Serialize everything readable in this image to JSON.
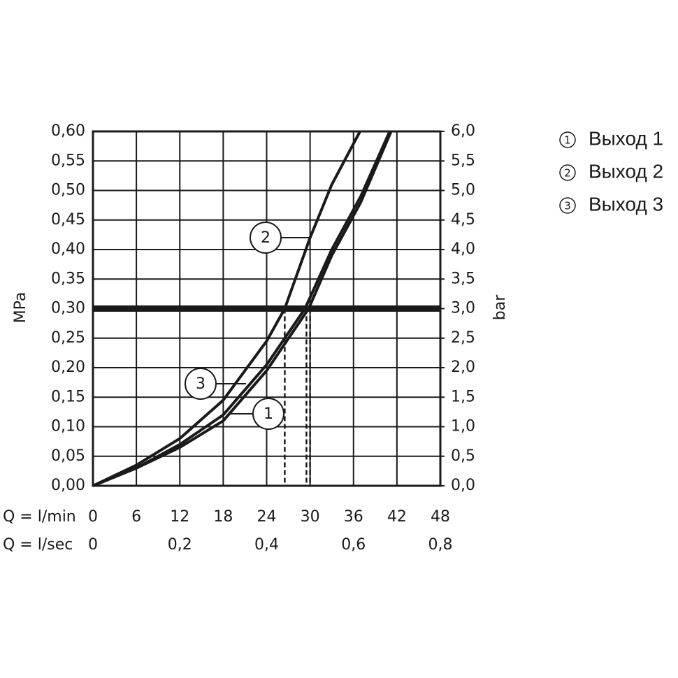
{
  "chart_data": {
    "type": "line",
    "y_label": "MPa",
    "y2_label": "bar",
    "x_label": "Q = l/min",
    "x2_label": "Q = l/sec",
    "xlim": [
      0,
      48
    ],
    "xticks": [
      0,
      6,
      12,
      18,
      24,
      30,
      36,
      42,
      48
    ],
    "x2lim": [
      0,
      0.8
    ],
    "x2ticks": [
      0,
      {
        "value": 0.2,
        "label": "0,2"
      },
      {
        "value": 0.4,
        "label": "0,4"
      },
      {
        "value": 0.6,
        "label": "0,6"
      },
      {
        "value": 0.8,
        "label": "0,8"
      }
    ],
    "ylim": [
      0,
      0.6
    ],
    "yticks": [
      {
        "value": 0,
        "label": "0,00"
      },
      {
        "value": 0.05,
        "label": "0,05"
      },
      {
        "value": 0.1,
        "label": "0,10"
      },
      {
        "value": 0.15,
        "label": "0,15"
      },
      {
        "value": 0.2,
        "label": "0,20"
      },
      {
        "value": 0.25,
        "label": "0,25"
      },
      {
        "value": 0.3,
        "label": "0,30"
      },
      {
        "value": 0.35,
        "label": "0,35"
      },
      {
        "value": 0.4,
        "label": "0,40"
      },
      {
        "value": 0.45,
        "label": "0,45"
      },
      {
        "value": 0.5,
        "label": "0,50"
      },
      {
        "value": 0.55,
        "label": "0,55"
      },
      {
        "value": 0.6,
        "label": "0,60"
      }
    ],
    "y2lim": [
      0,
      6
    ],
    "y2ticks": [
      {
        "value": 0,
        "label": "0,0"
      },
      {
        "value": 0.5,
        "label": "0,5"
      },
      {
        "value": 1,
        "label": "1,0"
      },
      {
        "value": 1.5,
        "label": "1,5"
      },
      {
        "value": 2,
        "label": "2,0"
      },
      {
        "value": 2.5,
        "label": "2,5"
      },
      {
        "value": 3,
        "label": "3,0"
      },
      {
        "value": 3.5,
        "label": "3,5"
      },
      {
        "value": 4,
        "label": "4,0"
      },
      {
        "value": 4.5,
        "label": "4,5"
      },
      {
        "value": 5,
        "label": "5,0"
      },
      {
        "value": 5.5,
        "label": "5,5"
      },
      {
        "value": 6,
        "label": "6,0"
      }
    ],
    "grid": true,
    "color": "#1a1a1a",
    "reference_y": 0.3,
    "reference_x": [
      26.5,
      29.5,
      30
    ],
    "series": [
      {
        "name": "Выход 1",
        "label": "1",
        "x": [
          0,
          6,
          12,
          18,
          24,
          29.8,
          33,
          37,
          41.2
        ],
        "values": [
          0,
          0.03,
          0.065,
          0.11,
          0.195,
          0.3,
          0.39,
          0.48,
          0.6
        ]
      },
      {
        "name": "Выход 2",
        "label": "2",
        "x": [
          0,
          6,
          12,
          18,
          24,
          26.5,
          30,
          33,
          36.9
        ],
        "values": [
          0,
          0.035,
          0.08,
          0.145,
          0.245,
          0.3,
          0.42,
          0.51,
          0.6
        ]
      },
      {
        "name": "Выход 3",
        "label": "3",
        "x": [
          0,
          6,
          12,
          18,
          24,
          29.3,
          33,
          37,
          41
        ],
        "values": [
          0,
          0.03,
          0.07,
          0.12,
          0.205,
          0.3,
          0.4,
          0.49,
          0.6
        ]
      }
    ]
  }
}
